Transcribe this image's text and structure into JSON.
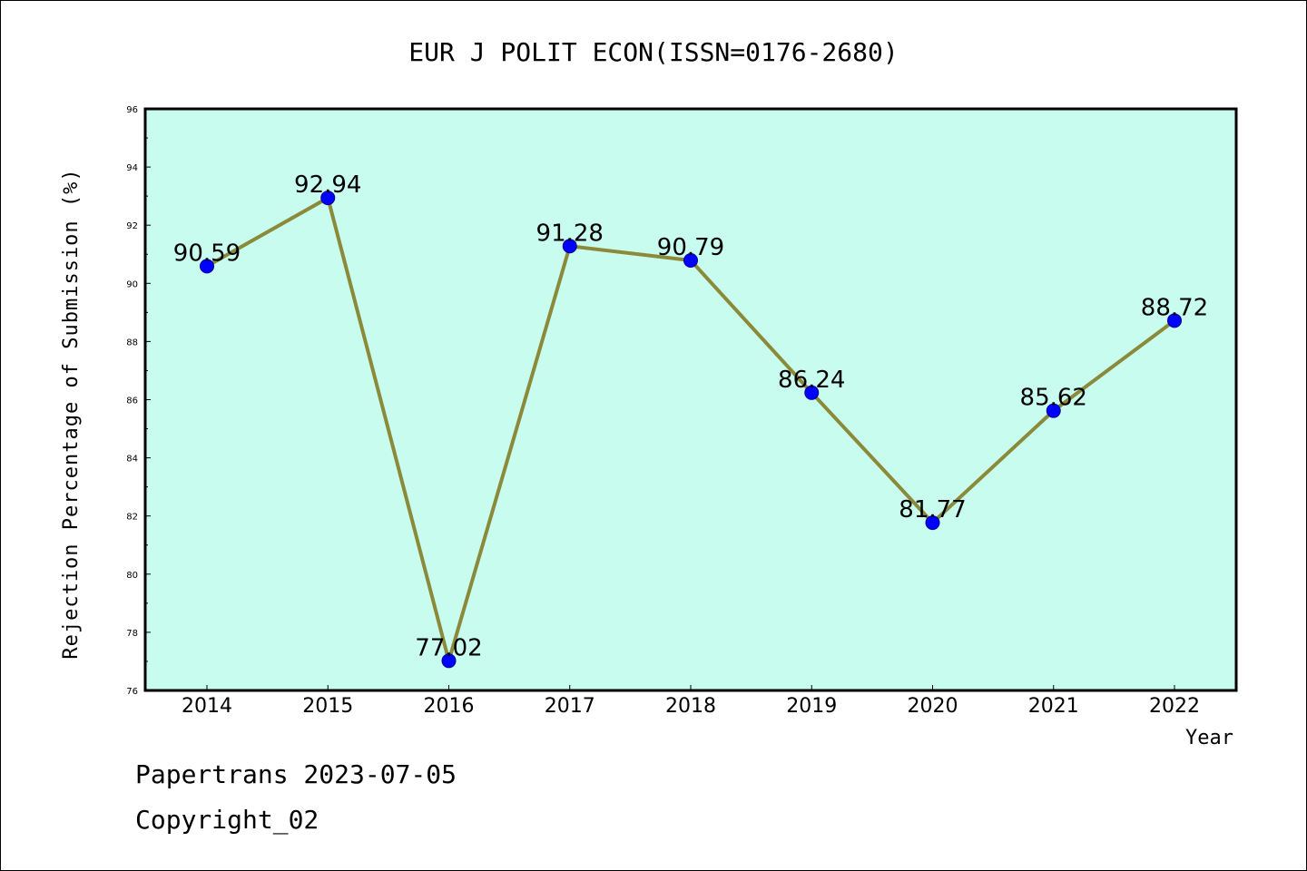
{
  "footer": {
    "line1": "Papertrans 2023-07-05",
    "line2": "Copyright_02"
  },
  "colors": {
    "plot_background": "#c8fcee",
    "line": "#8b8a3a",
    "marker": "#0000ff",
    "axis": "#000000"
  },
  "chart_data": {
    "type": "line",
    "title": "EUR J POLIT ECON(ISSN=0176-2680)",
    "xlabel": "Year",
    "ylabel": "Rejection Percentage of Submission (%)",
    "categories": [
      "2014",
      "2015",
      "2016",
      "2017",
      "2018",
      "2019",
      "2020",
      "2021",
      "2022"
    ],
    "series": [
      {
        "values": [
          90.59,
          92.94,
          77.02,
          91.28,
          90.79,
          86.24,
          81.77,
          85.62,
          88.72
        ],
        "labels": [
          "90.59",
          "92.94",
          "77.02",
          "91.28",
          "90.79",
          "86.24",
          "81.77",
          "85.62",
          "88.72"
        ]
      }
    ],
    "ylim": [
      76,
      96
    ],
    "yticks": [
      "76",
      "78",
      "80",
      "82",
      "84",
      "86",
      "88",
      "90",
      "92",
      "94",
      "96"
    ],
    "grid": false,
    "legend": "none"
  }
}
